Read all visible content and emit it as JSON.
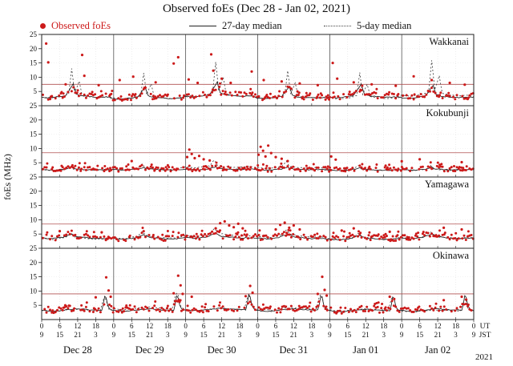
{
  "title": "Observed foEs (Dec 28 - Jan 02, 2021)",
  "legend": {
    "observed": "Observed foEs",
    "median27": "27-day median",
    "median5": "5-day median"
  },
  "colors": {
    "observed": "#cc1a1a",
    "median27": "#111111",
    "median5": "#3a3a3a",
    "threshold": "#b05050",
    "grid": "#dcdcdc",
    "day_line": "#3a3a3a",
    "frame": "#222222"
  },
  "chart_data": {
    "type": "scatter",
    "title": "Observed foEs (Dec 28 - Jan 02, 2021)",
    "ylabel": "foEs (MHz)",
    "ylim": [
      0,
      25
    ],
    "yticks": [
      5,
      10,
      15,
      20,
      25
    ],
    "x_hours_total": 144,
    "x_tick_step_hours": 6,
    "ut_labels": [
      "0",
      "6",
      "12",
      "18"
    ],
    "jst_labels": [
      "9",
      "15",
      "21",
      "3"
    ],
    "axis_right_labels": [
      "UT",
      "JST"
    ],
    "year_label": "2021",
    "day_labels": [
      "Dec 28",
      "Dec 29",
      "Dec 30",
      "Dec 31",
      "Jan 01",
      "Jan 02"
    ],
    "stations": [
      {
        "name": "Wakkanai",
        "threshold_mhz": 7.5,
        "dots": {
          "level_offset": 0.3,
          "amp": 1.1,
          "step": 0.6,
          "density": 0.82
        },
        "outliers": [
          [
            1.5,
            21.8
          ],
          [
            2.2,
            15.2
          ],
          [
            8,
            7.5
          ],
          [
            13.5,
            17.8
          ],
          [
            14.2,
            10.5
          ],
          [
            19,
            7.2
          ],
          [
            26,
            9.0
          ],
          [
            30.5,
            10.2
          ],
          [
            38,
            8.2
          ],
          [
            44,
            14.8
          ],
          [
            45.5,
            17.0
          ],
          [
            49,
            9.2
          ],
          [
            52,
            8.0
          ],
          [
            56.5,
            18.0
          ],
          [
            57.2,
            12.3
          ],
          [
            60,
            9.5
          ],
          [
            63,
            8.0
          ],
          [
            70,
            12.0
          ],
          [
            74,
            9.0
          ],
          [
            80,
            8.5
          ],
          [
            86,
            7.8
          ],
          [
            92,
            7.2
          ],
          [
            97,
            15.0
          ],
          [
            98.5,
            9.5
          ],
          [
            104,
            8.2
          ],
          [
            110,
            7.5
          ],
          [
            118,
            7.0
          ],
          [
            124,
            10.3
          ],
          [
            130,
            9.0
          ],
          [
            136,
            8.0
          ],
          [
            141,
            7.4
          ]
        ],
        "median27": {
          "daily": [
            [
              0,
              3.0
            ],
            [
              2,
              2.7
            ],
            [
              5,
              3.1
            ],
            [
              8,
              3.6
            ],
            [
              9.5,
              6.0
            ],
            [
              10.5,
              7.6
            ],
            [
              11.5,
              4.2
            ],
            [
              13,
              3.5
            ],
            [
              16,
              3.2
            ],
            [
              19,
              3.0
            ],
            [
              22,
              3.1
            ]
          ],
          "scale_per_day": [
            1,
            0.85,
            1.1,
            0.9,
            1.0,
            0.95
          ]
        },
        "median5": {
          "daily": [
            [
              0,
              3.4
            ],
            [
              3,
              3.0
            ],
            [
              7,
              3.6
            ],
            [
              9,
              4.5
            ],
            [
              10,
              14.5
            ],
            [
              11,
              5.0
            ],
            [
              12.5,
              9.5
            ],
            [
              13.5,
              4.0
            ],
            [
              16,
              3.4
            ],
            [
              19,
              3.2
            ],
            [
              22,
              3.4
            ]
          ],
          "scale_per_day": [
            0.9,
            0.8,
            1.05,
            0.85,
            0.8,
            1.1
          ]
        }
      },
      {
        "name": "Kokubunji",
        "threshold_mhz": 8.5,
        "dots": {
          "level_offset": 0.2,
          "amp": 0.8,
          "step": 0.6,
          "density": 0.85
        },
        "outliers": [
          [
            30,
            5.6
          ],
          [
            48.5,
            7.0
          ],
          [
            49.2,
            9.6
          ],
          [
            50,
            8.1
          ],
          [
            51,
            6.6
          ],
          [
            52.5,
            7.4
          ],
          [
            54,
            6.2
          ],
          [
            56,
            5.8
          ],
          [
            72.3,
            7.8
          ],
          [
            73,
            10.6
          ],
          [
            73.8,
            9.2
          ],
          [
            74.6,
            7.2
          ],
          [
            75.5,
            11.0
          ],
          [
            76.5,
            8.4
          ],
          [
            78,
            7.0
          ],
          [
            80,
            6.4
          ],
          [
            82,
            5.6
          ],
          [
            96.5,
            7.2
          ],
          [
            98,
            6.1
          ],
          [
            120,
            5.5
          ],
          [
            126,
            6.2
          ],
          [
            140,
            5.2
          ]
        ],
        "median27": {
          "daily": [
            [
              0,
              2.6
            ],
            [
              4,
              2.4
            ],
            [
              8,
              2.8
            ],
            [
              10,
              3.4
            ],
            [
              11,
              2.9
            ],
            [
              14,
              2.6
            ],
            [
              18,
              2.5
            ],
            [
              22,
              2.6
            ]
          ],
          "scale_per_day": [
            1,
            1,
            1.05,
            1,
            0.95,
            1
          ]
        },
        "median5": {
          "daily": [
            [
              0,
              2.8
            ],
            [
              3,
              2.5
            ],
            [
              8,
              3.0
            ],
            [
              9.5,
              4.6
            ],
            [
              10.5,
              3.2
            ],
            [
              13,
              2.8
            ],
            [
              17,
              2.6
            ],
            [
              21,
              2.8
            ]
          ],
          "scale_per_day": [
            0.9,
            1,
            1.3,
            1.2,
            0.9,
            0.9
          ]
        }
      },
      {
        "name": "Yamagawa",
        "threshold_mhz": 8.5,
        "dots": {
          "level_offset": 0.3,
          "amp": 1.0,
          "step": 0.6,
          "density": 0.84
        },
        "outliers": [
          [
            6,
            6.0
          ],
          [
            20,
            5.6
          ],
          [
            58,
            7.0
          ],
          [
            59.5,
            8.8
          ],
          [
            61,
            9.4
          ],
          [
            62.5,
            8.0
          ],
          [
            64,
            7.4
          ],
          [
            65.5,
            8.6
          ],
          [
            67,
            7.0
          ],
          [
            78,
            6.6
          ],
          [
            79.5,
            8.2
          ],
          [
            81,
            9.0
          ],
          [
            82.5,
            7.2
          ],
          [
            84,
            8.0
          ],
          [
            86,
            6.6
          ],
          [
            100,
            6.2
          ],
          [
            104,
            7.0
          ],
          [
            116,
            5.8
          ],
          [
            134,
            7.2
          ],
          [
            140,
            6.6
          ]
        ],
        "median27": {
          "daily": [
            [
              0,
              3.6
            ],
            [
              3,
              3.3
            ],
            [
              7,
              3.8
            ],
            [
              9,
              4.6
            ],
            [
              10,
              5.0
            ],
            [
              12,
              4.0
            ],
            [
              15,
              3.7
            ],
            [
              18,
              3.4
            ],
            [
              21,
              3.5
            ]
          ],
          "scale_per_day": [
            1,
            0.95,
            1.05,
            1,
            0.9,
            1
          ]
        },
        "median5": {
          "daily": [
            [
              0,
              3.8
            ],
            [
              4,
              3.4
            ],
            [
              8,
              4.2
            ],
            [
              9.5,
              5.8
            ],
            [
              11,
              4.5
            ],
            [
              14,
              3.9
            ],
            [
              18,
              3.5
            ],
            [
              21,
              3.7
            ]
          ],
          "scale_per_day": [
            0.9,
            1,
            1.2,
            1.1,
            0.9,
            1
          ]
        }
      },
      {
        "name": "Okinawa",
        "threshold_mhz": 9.0,
        "dots": {
          "level_offset": 0.3,
          "amp": 1.1,
          "step": 0.6,
          "density": 0.83
        },
        "outliers": [
          [
            18,
            7.8
          ],
          [
            21.5,
            14.8
          ],
          [
            22.3,
            10.2
          ],
          [
            23,
            8.0
          ],
          [
            44,
            9.2
          ],
          [
            45.5,
            15.4
          ],
          [
            46.3,
            12.0
          ],
          [
            47,
            9.0
          ],
          [
            50,
            8.0
          ],
          [
            68,
            8.2
          ],
          [
            69.5,
            11.8
          ],
          [
            70.3,
            9.4
          ],
          [
            92,
            9.0
          ],
          [
            93.5,
            15.0
          ],
          [
            94.3,
            10.4
          ],
          [
            95,
            8.4
          ],
          [
            116,
            8.0
          ],
          [
            117.5,
            7.2
          ],
          [
            134,
            6.8
          ],
          [
            140,
            8.0
          ],
          [
            141.5,
            7.0
          ]
        ],
        "median27": {
          "daily": [
            [
              0,
              3.2
            ],
            [
              4,
              2.9
            ],
            [
              8,
              3.4
            ],
            [
              12,
              3.8
            ],
            [
              16,
              3.4
            ],
            [
              20,
              3.3
            ],
            [
              20.7,
              6.0
            ],
            [
              21.2,
              9.8
            ],
            [
              21.8,
              5.5
            ],
            [
              22.8,
              3.4
            ]
          ],
          "scale_per_day": [
            1,
            1,
            1.05,
            1,
            0.95,
            1
          ]
        },
        "median5": {
          "daily": [
            [
              0,
              3.5
            ],
            [
              4,
              3.1
            ],
            [
              8,
              3.7
            ],
            [
              12,
              4.0
            ],
            [
              16,
              3.6
            ],
            [
              19.5,
              3.5
            ],
            [
              20.5,
              7.5
            ],
            [
              21.3,
              8.8
            ],
            [
              22.2,
              4.0
            ],
            [
              23,
              3.6
            ]
          ],
          "scale_per_day": [
            0.9,
            1.1,
            1,
            1.05,
            0.95,
            0.85
          ]
        }
      }
    ]
  }
}
